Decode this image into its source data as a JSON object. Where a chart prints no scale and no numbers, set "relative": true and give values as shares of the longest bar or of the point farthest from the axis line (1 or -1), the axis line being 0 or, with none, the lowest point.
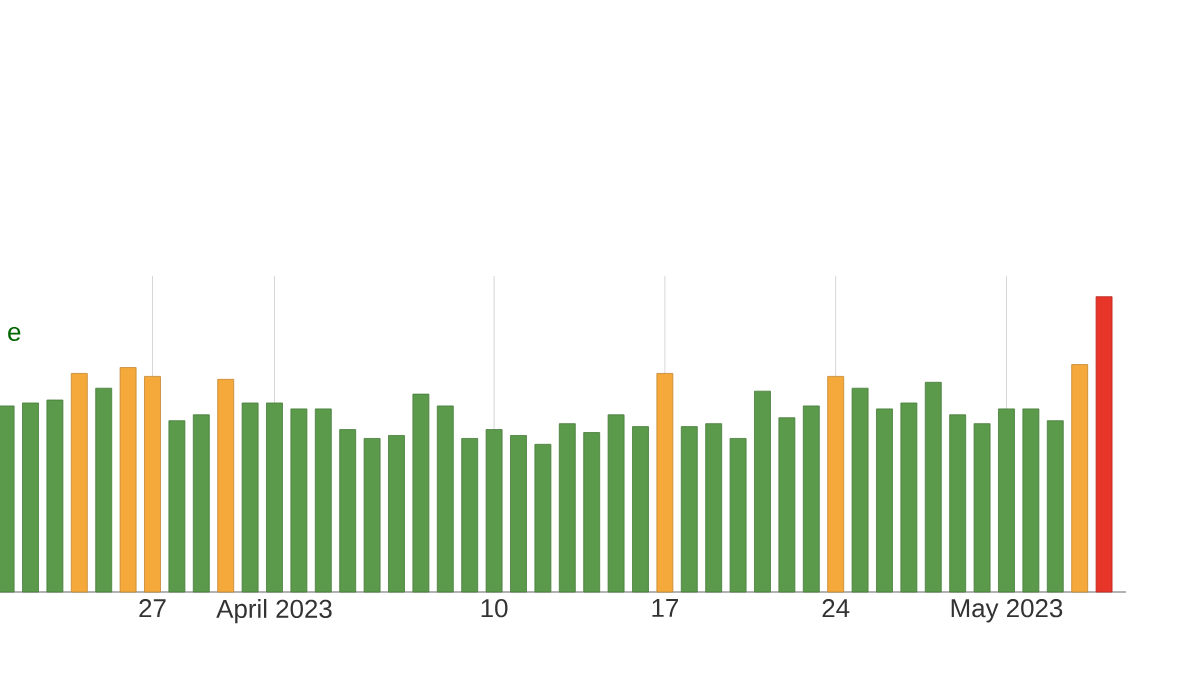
{
  "chart_data": {
    "type": "bar",
    "relative": true,
    "categories": [
      null,
      null,
      null,
      null,
      null,
      null,
      "27",
      null,
      null,
      null,
      null,
      "April 2023",
      null,
      null,
      null,
      null,
      null,
      null,
      null,
      null,
      "10",
      null,
      null,
      null,
      null,
      null,
      null,
      "17",
      null,
      null,
      null,
      null,
      null,
      null,
      "24",
      null,
      null,
      null,
      null,
      null,
      null,
      "May 2023",
      null,
      null,
      null,
      null
    ],
    "values": [
      0.63,
      0.64,
      0.65,
      0.74,
      0.69,
      0.76,
      0.73,
      0.58,
      0.6,
      0.72,
      0.64,
      0.64,
      0.62,
      0.62,
      0.55,
      0.52,
      0.53,
      0.67,
      0.63,
      0.52,
      0.55,
      0.53,
      0.5,
      0.57,
      0.54,
      0.6,
      0.56,
      0.74,
      0.56,
      0.57,
      0.52,
      0.68,
      0.59,
      0.63,
      0.73,
      0.69,
      0.62,
      0.64,
      0.71,
      0.6,
      0.57,
      0.62,
      0.62,
      0.58,
      0.77,
      1
    ],
    "colors": [
      "#5a9a4a",
      "#5a9a4a",
      "#5a9a4a",
      "#f4a93a",
      "#5a9a4a",
      "#f4a93a",
      "#f4a93a",
      "#5a9a4a",
      "#5a9a4a",
      "#f4a93a",
      "#5a9a4a",
      "#5a9a4a",
      "#5a9a4a",
      "#5a9a4a",
      "#5a9a4a",
      "#5a9a4a",
      "#5a9a4a",
      "#5a9a4a",
      "#5a9a4a",
      "#5a9a4a",
      "#5a9a4a",
      "#5a9a4a",
      "#5a9a4a",
      "#5a9a4a",
      "#5a9a4a",
      "#5a9a4a",
      "#5a9a4a",
      "#f4a93a",
      "#5a9a4a",
      "#5a9a4a",
      "#5a9a4a",
      "#5a9a4a",
      "#5a9a4a",
      "#5a9a4a",
      "#f4a93a",
      "#5a9a4a",
      "#5a9a4a",
      "#5a9a4a",
      "#5a9a4a",
      "#5a9a4a",
      "#5a9a4a",
      "#5a9a4a",
      "#5a9a4a",
      "#5a9a4a",
      "#f4a93a",
      "#e8352a"
    ],
    "grid": "x",
    "annotations": [
      "e"
    ]
  }
}
